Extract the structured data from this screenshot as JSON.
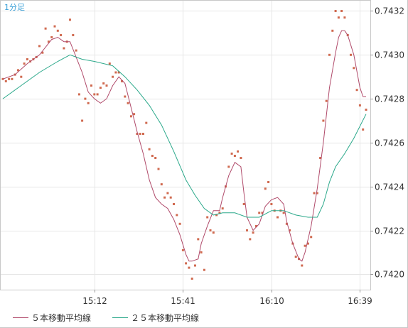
{
  "timeframe_label": "1分足",
  "colors": {
    "ma5": "#b04a6a",
    "ma25": "#2aa88a",
    "price_points": "#d06a50",
    "grid": "#e6e6e6",
    "frame": "#c8c8c8"
  },
  "legend": [
    {
      "label": "５本移動平均線",
      "color": "#b04a6a"
    },
    {
      "label": "２５本移動平均線",
      "color": "#2aa88a"
    }
  ],
  "chart_data": {
    "type": "scatter",
    "x_ticks": [
      "15:12",
      "15:41",
      "16:10",
      "16:39"
    ],
    "x_tick_index": [
      30,
      59,
      88,
      117
    ],
    "y_ticks": [
      "0.7432",
      "0.7430",
      "0.7428",
      "0.7426",
      "0.7424",
      "0.7422",
      "0.7420"
    ],
    "ylim": [
      0.74193,
      0.74325
    ],
    "xlim": [
      0,
      119
    ],
    "grid": true,
    "legend_position": "bottom",
    "series": [
      {
        "name": "５本移動平均線",
        "kind": "line",
        "points": [
          [
            0,
            0.74289
          ],
          [
            4,
            0.74291
          ],
          [
            8,
            0.74296
          ],
          [
            12,
            0.743
          ],
          [
            16,
            0.74307
          ],
          [
            18,
            0.74308
          ],
          [
            20,
            0.74306
          ],
          [
            22,
            0.74306
          ],
          [
            24,
            0.74299
          ],
          [
            26,
            0.74292
          ],
          [
            28,
            0.74283
          ],
          [
            30,
            0.7428
          ],
          [
            32,
            0.74278
          ],
          [
            34,
            0.7428
          ],
          [
            36,
            0.74286
          ],
          [
            38,
            0.7429
          ],
          [
            40,
            0.74287
          ],
          [
            42,
            0.74276
          ],
          [
            44,
            0.74265
          ],
          [
            46,
            0.74255
          ],
          [
            48,
            0.74243
          ],
          [
            50,
            0.74235
          ],
          [
            52,
            0.74232
          ],
          [
            54,
            0.7423
          ],
          [
            56,
            0.74225
          ],
          [
            58,
            0.74218
          ],
          [
            60,
            0.74209
          ],
          [
            61,
            0.74206
          ],
          [
            62,
            0.74206
          ],
          [
            64,
            0.74207
          ],
          [
            65,
            0.74214
          ],
          [
            67,
            0.74222
          ],
          [
            69,
            0.74229
          ],
          [
            71,
            0.74229
          ],
          [
            72,
            0.74235
          ],
          [
            74,
            0.74245
          ],
          [
            76,
            0.74251
          ],
          [
            78,
            0.74249
          ],
          [
            79,
            0.74237
          ],
          [
            80,
            0.74226
          ],
          [
            82,
            0.7422
          ],
          [
            84,
            0.74223
          ],
          [
            86,
            0.74231
          ],
          [
            88,
            0.74234
          ],
          [
            90,
            0.74235
          ],
          [
            92,
            0.74232
          ],
          [
            93,
            0.74224
          ],
          [
            95,
            0.74214
          ],
          [
            97,
            0.74207
          ],
          [
            98,
            0.74206
          ],
          [
            99,
            0.7421
          ],
          [
            101,
            0.74222
          ],
          [
            103,
            0.74239
          ],
          [
            105,
            0.7426
          ],
          [
            107,
            0.74285
          ],
          [
            109,
            0.74301
          ],
          [
            110,
            0.74308
          ],
          [
            111,
            0.74311
          ],
          [
            112,
            0.74311
          ],
          [
            113,
            0.74309
          ],
          [
            115,
            0.743
          ],
          [
            117,
            0.74285
          ],
          [
            118,
            0.74281
          ],
          [
            119,
            0.74281
          ]
        ]
      },
      {
        "name": "２５本移動平均線",
        "kind": "line",
        "points": [
          [
            0,
            0.7428
          ],
          [
            6,
            0.74286
          ],
          [
            12,
            0.74292
          ],
          [
            18,
            0.74297
          ],
          [
            22,
            0.743
          ],
          [
            26,
            0.74298
          ],
          [
            30,
            0.74297
          ],
          [
            36,
            0.74295
          ],
          [
            40,
            0.7429
          ],
          [
            44,
            0.74284
          ],
          [
            48,
            0.74277
          ],
          [
            52,
            0.74268
          ],
          [
            56,
            0.74256
          ],
          [
            60,
            0.74243
          ],
          [
            63,
            0.74236
          ],
          [
            66,
            0.7423
          ],
          [
            69,
            0.74227
          ],
          [
            72,
            0.74228
          ],
          [
            76,
            0.74228
          ],
          [
            80,
            0.74226
          ],
          [
            84,
            0.74226
          ],
          [
            88,
            0.74229
          ],
          [
            92,
            0.74229
          ],
          [
            96,
            0.74227
          ],
          [
            100,
            0.74226
          ],
          [
            103,
            0.74226
          ],
          [
            105,
            0.74232
          ],
          [
            107,
            0.74242
          ],
          [
            109,
            0.74249
          ],
          [
            112,
            0.74255
          ],
          [
            115,
            0.74262
          ],
          [
            119,
            0.74273
          ]
        ]
      },
      {
        "name": "",
        "kind": "points",
        "points": [
          [
            0,
            0.74289
          ],
          [
            1,
            0.74288
          ],
          [
            2,
            0.74289
          ],
          [
            3,
            0.74289
          ],
          [
            4,
            0.74291
          ],
          [
            5,
            0.74293
          ],
          [
            6,
            0.7429
          ],
          [
            7,
            0.74296
          ],
          [
            8,
            0.74298
          ],
          [
            9,
            0.74297
          ],
          [
            10,
            0.74298
          ],
          [
            11,
            0.74299
          ],
          [
            12,
            0.74304
          ],
          [
            13,
            0.74301
          ],
          [
            14,
            0.74312
          ],
          [
            15,
            0.74306
          ],
          [
            16,
            0.74308
          ],
          [
            17,
            0.74313
          ],
          [
            18,
            0.74311
          ],
          [
            19,
            0.74309
          ],
          [
            20,
            0.74303
          ],
          [
            21,
            0.74306
          ],
          [
            22,
            0.74316
          ],
          [
            23,
            0.74309
          ],
          [
            24,
            0.74302
          ],
          [
            25,
            0.74282
          ],
          [
            26,
            0.7427
          ],
          [
            27,
            0.7428
          ],
          [
            28,
            0.74278
          ],
          [
            29,
            0.74286
          ],
          [
            30,
            0.74282
          ],
          [
            31,
            0.74282
          ],
          [
            32,
            0.74285
          ],
          [
            33,
            0.74287
          ],
          [
            34,
            0.74286
          ],
          [
            35,
            0.74296
          ],
          [
            36,
            0.7429
          ],
          [
            37,
            0.74292
          ],
          [
            38,
            0.74292
          ],
          [
            39,
            0.74288
          ],
          [
            40,
            0.74281
          ],
          [
            41,
            0.74278
          ],
          [
            42,
            0.74272
          ],
          [
            43,
            0.74273
          ],
          [
            44,
            0.74264
          ],
          [
            45,
            0.74264
          ],
          [
            46,
            0.74264
          ],
          [
            47,
            0.74269
          ],
          [
            48,
            0.74257
          ],
          [
            49,
            0.74254
          ],
          [
            50,
            0.74253
          ],
          [
            51,
            0.74248
          ],
          [
            52,
            0.74241
          ],
          [
            53,
            0.74235
          ],
          [
            54,
            0.74237
          ],
          [
            55,
            0.74235
          ],
          [
            56,
            0.74232
          ],
          [
            57,
            0.74227
          ],
          [
            58,
            0.74223
          ],
          [
            59,
            0.74211
          ],
          [
            60,
            0.74205
          ],
          [
            61,
            0.74203
          ],
          [
            62,
            0.74198
          ],
          [
            63,
            0.74204
          ],
          [
            64,
            0.74216
          ],
          [
            65,
            0.7421
          ],
          [
            66,
            0.74202
          ],
          [
            67,
            0.74226
          ],
          [
            68,
            0.7422
          ],
          [
            69,
            0.74219
          ],
          [
            70,
            0.74227
          ],
          [
            71,
            0.74228
          ],
          [
            72,
            0.7423
          ],
          [
            73,
            0.7424
          ],
          [
            74,
            0.74249
          ],
          [
            75,
            0.74255
          ],
          [
            76,
            0.74254
          ],
          [
            77,
            0.74256
          ],
          [
            78,
            0.74253
          ],
          [
            79,
            0.74232
          ],
          [
            80,
            0.7422
          ],
          [
            81,
            0.74216
          ],
          [
            82,
            0.74219
          ],
          [
            83,
            0.74222
          ],
          [
            84,
            0.74228
          ],
          [
            85,
            0.74228
          ],
          [
            86,
            0.74239
          ],
          [
            87,
            0.74242
          ],
          [
            88,
            0.74232
          ],
          [
            89,
            0.74229
          ],
          [
            90,
            0.74226
          ],
          [
            91,
            0.74229
          ],
          [
            92,
            0.74228
          ],
          [
            93,
            0.74223
          ],
          [
            94,
            0.7422
          ],
          [
            95,
            0.74214
          ],
          [
            96,
            0.74208
          ],
          [
            97,
            0.74207
          ],
          [
            98,
            0.74204
          ],
          [
            99,
            0.74213
          ],
          [
            100,
            0.74214
          ],
          [
            101,
            0.74217
          ],
          [
            102,
            0.74237
          ],
          [
            103,
            0.74237
          ],
          [
            104,
            0.74253
          ],
          [
            105,
            0.7427
          ],
          [
            106,
            0.74279
          ],
          [
            107,
            0.743
          ],
          [
            108,
            0.74311
          ],
          [
            109,
            0.7432
          ],
          [
            110,
            0.74317
          ],
          [
            111,
            0.7432
          ],
          [
            112,
            0.74317
          ],
          [
            113,
            0.74309
          ],
          [
            114,
            0.743
          ],
          [
            115,
            0.74294
          ],
          [
            116,
            0.74284
          ],
          [
            117,
            0.74277
          ],
          [
            118,
            0.74266
          ],
          [
            119,
            0.74275
          ]
        ]
      }
    ]
  }
}
